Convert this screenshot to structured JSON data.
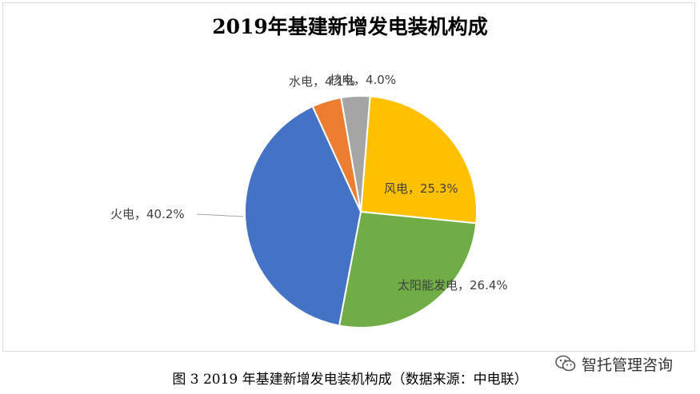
{
  "chart_data": {
    "type": "pie",
    "title": "2019年基建新增发电装机构成",
    "slices": [
      {
        "label": "风电",
        "value": 25.3,
        "display": "风电，25.3%",
        "color": "#ffc000"
      },
      {
        "label": "太阳能发电",
        "value": 26.4,
        "display": "太阳能发电，26.4%",
        "color": "#70ad47"
      },
      {
        "label": "火电",
        "value": 40.2,
        "display": "火电，40.2%",
        "color": "#4472c4"
      },
      {
        "label": "水电",
        "value": 4.1,
        "display": "水电，4.1%",
        "color": "#ed7d31"
      },
      {
        "label": "核电",
        "value": 4.0,
        "display": "核电，4.0%",
        "color": "#a5a5a5"
      }
    ]
  },
  "caption": "图 3 2019 年基建新增发电装机构成（数据来源：中电联）",
  "watermark": {
    "text": "智托管理咨询",
    "icon": "wechat-icon"
  }
}
